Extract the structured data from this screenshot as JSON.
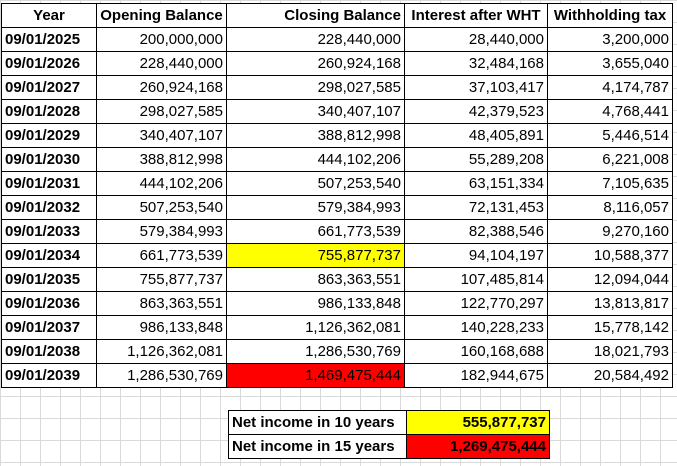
{
  "headers": {
    "year": "Year",
    "opening": "Opening Balance",
    "closing": "Closing Balance",
    "interest": "Interest after WHT",
    "wht": "Withholding tax"
  },
  "rows": [
    {
      "year": "09/01/2025",
      "opening": "200,000,000",
      "closing": "228,440,000",
      "interest": "28,440,000",
      "wht": "3,200,000"
    },
    {
      "year": "09/01/2026",
      "opening": "228,440,000",
      "closing": "260,924,168",
      "interest": "32,484,168",
      "wht": "3,655,040"
    },
    {
      "year": "09/01/2027",
      "opening": "260,924,168",
      "closing": "298,027,585",
      "interest": "37,103,417",
      "wht": "4,174,787"
    },
    {
      "year": "09/01/2028",
      "opening": "298,027,585",
      "closing": "340,407,107",
      "interest": "42,379,523",
      "wht": "4,768,441"
    },
    {
      "year": "09/01/2029",
      "opening": "340,407,107",
      "closing": "388,812,998",
      "interest": "48,405,891",
      "wht": "5,446,514"
    },
    {
      "year": "09/01/2030",
      "opening": "388,812,998",
      "closing": "444,102,206",
      "interest": "55,289,208",
      "wht": "6,221,008"
    },
    {
      "year": "09/01/2031",
      "opening": "444,102,206",
      "closing": "507,253,540",
      "interest": "63,151,334",
      "wht": "7,105,635"
    },
    {
      "year": "09/01/2032",
      "opening": "507,253,540",
      "closing": "579,384,993",
      "interest": "72,131,453",
      "wht": "8,116,057"
    },
    {
      "year": "09/01/2033",
      "opening": "579,384,993",
      "closing": "661,773,539",
      "interest": "82,388,546",
      "wht": "9,270,160"
    },
    {
      "year": "09/01/2034",
      "opening": "661,773,539",
      "closing": "755,877,737",
      "interest": "94,104,197",
      "wht": "10,588,377",
      "highlight": "yellow"
    },
    {
      "year": "09/01/2035",
      "opening": "755,877,737",
      "closing": "863,363,551",
      "interest": "107,485,814",
      "wht": "12,094,044"
    },
    {
      "year": "09/01/2036",
      "opening": "863,363,551",
      "closing": "986,133,848",
      "interest": "122,770,297",
      "wht": "13,813,817"
    },
    {
      "year": "09/01/2037",
      "opening": "986,133,848",
      "closing": "1,126,362,081",
      "interest": "140,228,233",
      "wht": "15,778,142"
    },
    {
      "year": "09/01/2038",
      "opening": "1,126,362,081",
      "closing": "1,286,530,769",
      "interest": "160,168,688",
      "wht": "18,021,793"
    },
    {
      "year": "09/01/2039",
      "opening": "1,286,530,769",
      "closing": "1,469,475,444",
      "interest": "182,944,675",
      "wht": "20,584,492",
      "highlight": "red"
    }
  ],
  "summary": [
    {
      "label": "Net income in 10 years",
      "value": "555,877,737",
      "highlight": "yellow"
    },
    {
      "label": "Net income in 15 years",
      "value": "1,269,475,444",
      "highlight": "red"
    }
  ],
  "colors": {
    "highlight_yellow": "#ffff00",
    "highlight_red": "#ff0000",
    "gridline": "#d9d9d9"
  }
}
